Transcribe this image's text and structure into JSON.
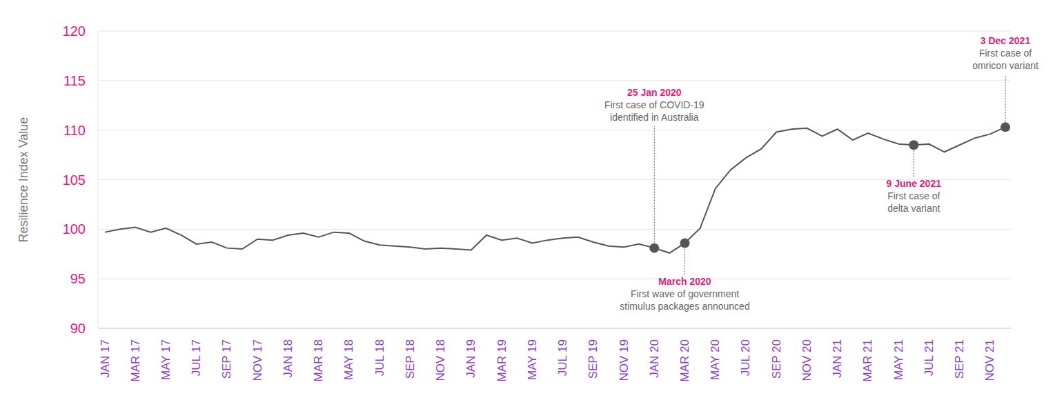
{
  "chart_data": {
    "type": "line",
    "ylabel": "Resilience Index Value",
    "categories": [
      "JAN 17",
      null,
      "MAR 17",
      null,
      "MAY 17",
      null,
      "JUL 17",
      null,
      "SEP 17",
      null,
      "NOV 17",
      null,
      "JAN 18",
      null,
      "MAR 18",
      null,
      "MAY 18",
      null,
      "JUL 18",
      null,
      "SEP 18",
      null,
      "NOV 18",
      null,
      "JAN 19",
      null,
      "MAR 19",
      null,
      "MAY 19",
      null,
      "JUL 19",
      null,
      "SEP 19",
      null,
      "NOV 19",
      null,
      "JAN 20",
      null,
      "MAR 20",
      null,
      "MAY 20",
      null,
      "JUL 20",
      null,
      "SEP 20",
      null,
      "NOV 20",
      null,
      "JAN 21",
      null,
      "MAR 21",
      null,
      "MAY 21",
      null,
      "JUL 21",
      null,
      "SEP 21",
      null,
      "NOV 21",
      null
    ],
    "values": [
      99.7,
      100.0,
      100.2,
      99.7,
      100.1,
      99.4,
      98.5,
      98.7,
      98.1,
      98.0,
      99.0,
      98.9,
      99.4,
      99.6,
      99.2,
      99.7,
      99.6,
      98.8,
      98.4,
      98.3,
      98.2,
      98.0,
      98.1,
      98.0,
      97.9,
      99.4,
      98.9,
      99.1,
      98.6,
      98.9,
      99.1,
      99.2,
      98.7,
      98.3,
      98.2,
      98.5,
      98.1,
      97.6,
      98.6,
      100.1,
      104.1,
      106.0,
      107.2,
      108.1,
      109.8,
      110.1,
      110.2,
      109.4,
      110.1,
      109.0,
      109.7,
      109.1,
      108.6,
      108.5,
      108.6,
      107.8,
      108.5,
      109.2,
      109.6,
      110.3
    ],
    "color": "#555555",
    "ylim": [
      90,
      120
    ],
    "yticks": [
      90,
      95,
      100,
      105,
      110,
      115,
      120
    ],
    "grid": true,
    "annotations": [
      {
        "index": 36,
        "date": "25 Jan 2020",
        "text": [
          "First case of COVID-19",
          "identified in Australia"
        ]
      },
      {
        "index": 38,
        "date": "March 2020",
        "text": [
          "First wave of government",
          "stimulus packages announced"
        ]
      },
      {
        "index": 53,
        "date": "9 June 2021",
        "text": [
          "First case of",
          "delta variant"
        ]
      },
      {
        "index": 59,
        "date": "3 Dec 2021",
        "text": [
          "First case of",
          "omricon variant"
        ]
      }
    ]
  }
}
